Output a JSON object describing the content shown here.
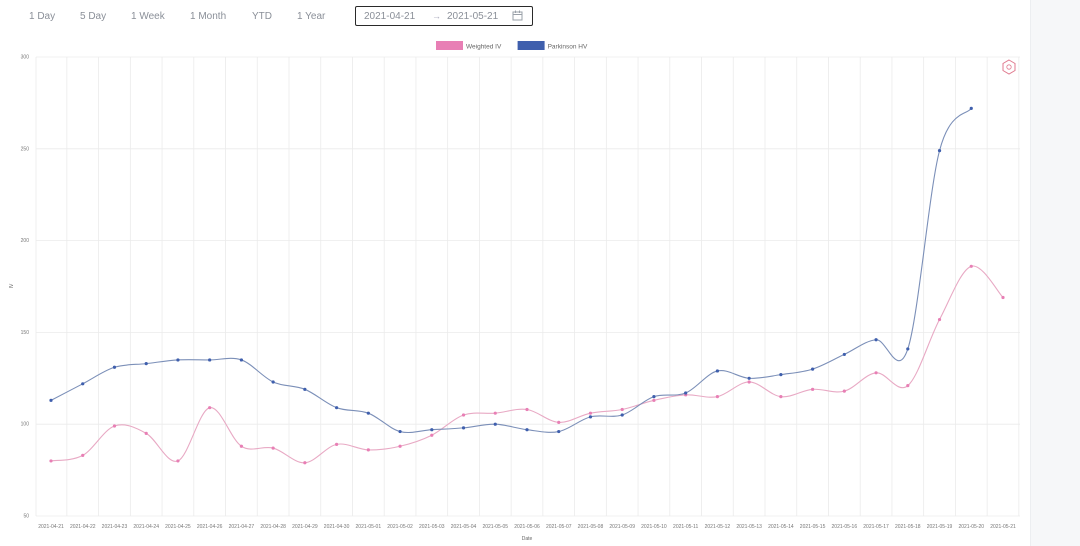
{
  "toolbar": {
    "ranges": [
      "1 Day",
      "5 Day",
      "1 Week",
      "1 Month",
      "YTD",
      "1 Year"
    ],
    "date_start": "2021-04-21",
    "date_end": "2021-05-21"
  },
  "chart_data": {
    "type": "line",
    "xlabel": "Date",
    "ylabel": "IV",
    "ylim": [
      50,
      300
    ],
    "yticks": [
      50,
      100,
      150,
      200,
      250,
      300
    ],
    "grid": true,
    "legend_position": "top-center",
    "categories": [
      "2021-04-21",
      "2021-04-22",
      "2021-04-23",
      "2021-04-24",
      "2021-04-25",
      "2021-04-26",
      "2021-04-27",
      "2021-04-28",
      "2021-04-29",
      "2021-04-30",
      "2021-05-01",
      "2021-05-02",
      "2021-05-03",
      "2021-05-04",
      "2021-05-05",
      "2021-05-06",
      "2021-05-07",
      "2021-05-08",
      "2021-05-09",
      "2021-05-10",
      "2021-05-11",
      "2021-05-12",
      "2021-05-13",
      "2021-05-14",
      "2021-05-15",
      "2021-05-16",
      "2021-05-17",
      "2021-05-18",
      "2021-05-19",
      "2021-05-20",
      "2021-05-21"
    ],
    "series": [
      {
        "name": "Weighted IV",
        "color": "#e87fb5",
        "line_color": "#e8a9c4",
        "values": [
          80,
          83,
          99,
          95,
          80,
          109,
          88,
          87,
          79,
          89,
          86,
          88,
          94,
          105,
          106,
          108,
          101,
          106,
          108,
          113,
          116,
          115,
          123,
          115,
          119,
          118,
          128,
          121,
          157,
          186,
          169
        ]
      },
      {
        "name": "Parkinson HV",
        "color": "#3f5fad",
        "line_color": "#7b8fb8",
        "values": [
          113,
          122,
          131,
          133,
          135,
          135,
          135,
          123,
          119,
          109,
          106,
          96,
          97,
          98,
          100,
          97,
          96,
          104,
          105,
          115,
          117,
          129,
          125,
          127,
          130,
          138,
          146,
          141,
          249,
          272,
          null
        ]
      }
    ]
  }
}
